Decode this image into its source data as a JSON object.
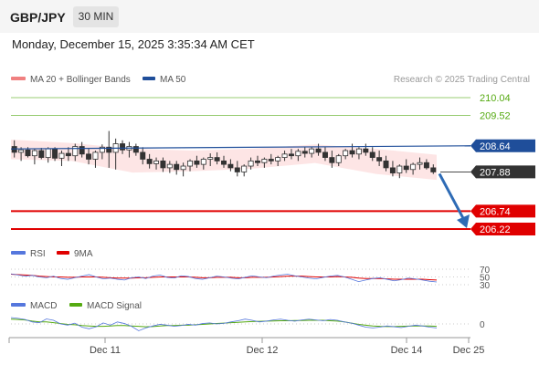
{
  "header": {
    "symbol": "GBP/JPY",
    "timeframe": "30 MIN"
  },
  "datetime": "Monday, December 15, 2025 3:35:34 AM CET",
  "colors": {
    "ma20": "#f08080",
    "ma50": "#1f4e9a",
    "support": "#e00000",
    "resistance": "#77bb44",
    "rsi": "#5577dd",
    "rsi9": "#e00000",
    "macd": "#5577dd",
    "macd_signal": "#55aa11",
    "arrow": "#2e6bb5",
    "bull": "#ffffff",
    "bear": "#333333"
  },
  "chart_data": {
    "type": "candlestick",
    "source_label": "Research © 2025 Trading Central",
    "legend": [
      {
        "label": "MA 20 + Bollinger Bands",
        "color": "#f08080"
      },
      {
        "label": "MA 50",
        "color": "#1f4e9a"
      }
    ],
    "x_ticks": [
      "Dec 11",
      "Dec 12",
      "Dec 14",
      "Dec 25"
    ],
    "levels": [
      {
        "value": "210.04",
        "kind": "resistance"
      },
      {
        "value": "209.52",
        "kind": "resistance"
      },
      {
        "value": "208.64",
        "kind": "ma50"
      },
      {
        "value": "207.88",
        "kind": "current"
      },
      {
        "value": "206.74",
        "kind": "support"
      },
      {
        "value": "206.22",
        "kind": "support"
      }
    ],
    "forecast": {
      "from": 207.88,
      "to": 206.22
    },
    "ma50_values": [
      208.55,
      208.64
    ],
    "bollinger": {
      "upper": [
        208.82,
        208.72,
        208.55,
        208.5,
        208.56,
        208.68,
        208.55,
        208.38
      ],
      "lower": [
        208.25,
        208.2,
        207.86,
        207.9,
        207.98,
        208.14,
        207.82,
        207.65
      ]
    },
    "candles": [
      [
        208.62,
        208.8,
        208.3,
        208.45
      ],
      [
        208.45,
        208.6,
        208.2,
        208.52
      ],
      [
        208.52,
        208.6,
        208.3,
        208.35
      ],
      [
        208.35,
        208.55,
        208.1,
        208.5
      ],
      [
        208.5,
        208.58,
        208.25,
        208.3
      ],
      [
        208.3,
        208.6,
        208.15,
        208.55
      ],
      [
        208.55,
        208.6,
        208.2,
        208.28
      ],
      [
        208.28,
        208.5,
        208.05,
        208.42
      ],
      [
        208.42,
        208.6,
        208.2,
        208.35
      ],
      [
        208.35,
        208.7,
        208.2,
        208.62
      ],
      [
        208.62,
        208.75,
        208.3,
        208.4
      ],
      [
        208.4,
        208.55,
        208.1,
        208.25
      ],
      [
        208.25,
        208.5,
        208.0,
        208.45
      ],
      [
        208.45,
        208.68,
        208.25,
        208.6
      ],
      [
        208.6,
        209.07,
        208.0,
        208.45
      ],
      [
        208.45,
        208.85,
        207.95,
        208.7
      ],
      [
        208.7,
        208.8,
        208.4,
        208.52
      ],
      [
        208.52,
        208.75,
        208.3,
        208.62
      ],
      [
        208.62,
        208.7,
        208.35,
        208.45
      ],
      [
        208.45,
        208.6,
        208.1,
        208.25
      ],
      [
        208.25,
        208.4,
        207.98,
        208.12
      ],
      [
        208.12,
        208.3,
        207.95,
        208.2
      ],
      [
        208.2,
        208.3,
        207.88,
        208.0
      ],
      [
        208.0,
        208.2,
        207.85,
        208.1
      ],
      [
        208.1,
        208.2,
        207.8,
        207.95
      ],
      [
        207.95,
        208.15,
        207.75,
        208.05
      ],
      [
        208.05,
        208.25,
        207.9,
        208.2
      ],
      [
        208.2,
        208.35,
        208.0,
        208.1
      ],
      [
        208.1,
        208.3,
        207.95,
        208.25
      ],
      [
        208.25,
        208.42,
        208.05,
        208.3
      ],
      [
        208.3,
        208.45,
        208.1,
        208.2
      ],
      [
        208.2,
        208.35,
        208.0,
        208.1
      ],
      [
        208.1,
        208.25,
        207.9,
        208.0
      ],
      [
        208.0,
        208.2,
        207.75,
        207.88
      ],
      [
        207.88,
        208.1,
        207.75,
        208.05
      ],
      [
        208.05,
        208.3,
        207.95,
        208.2
      ],
      [
        208.2,
        208.35,
        208.05,
        208.15
      ],
      [
        208.15,
        208.3,
        208.0,
        208.25
      ],
      [
        208.25,
        208.4,
        208.1,
        208.2
      ],
      [
        208.2,
        208.35,
        208.05,
        208.3
      ],
      [
        208.3,
        208.5,
        208.2,
        208.4
      ],
      [
        208.4,
        208.55,
        208.25,
        208.35
      ],
      [
        208.35,
        208.55,
        208.2,
        208.48
      ],
      [
        208.48,
        208.6,
        208.3,
        208.42
      ],
      [
        208.42,
        208.62,
        208.3,
        208.55
      ],
      [
        208.55,
        208.7,
        208.35,
        208.45
      ],
      [
        208.45,
        208.6,
        208.2,
        208.3
      ],
      [
        208.3,
        208.5,
        208.0,
        208.15
      ],
      [
        208.15,
        208.4,
        208.05,
        208.35
      ],
      [
        208.35,
        208.55,
        208.25,
        208.5
      ],
      [
        208.5,
        208.7,
        208.3,
        208.4
      ],
      [
        208.4,
        208.6,
        208.25,
        208.55
      ],
      [
        208.55,
        208.7,
        208.35,
        208.45
      ],
      [
        208.45,
        208.6,
        208.2,
        208.3
      ],
      [
        208.3,
        208.5,
        208.05,
        208.2
      ],
      [
        208.2,
        208.35,
        207.9,
        208.0
      ],
      [
        208.0,
        208.2,
        207.75,
        207.85
      ],
      [
        207.85,
        208.1,
        207.7,
        208.05
      ],
      [
        208.05,
        208.25,
        207.85,
        207.95
      ],
      [
        207.95,
        208.15,
        207.8,
        208.1
      ],
      [
        208.1,
        208.3,
        207.95,
        208.15
      ],
      [
        208.15,
        208.25,
        207.95,
        208.0
      ],
      [
        208.0,
        208.1,
        207.82,
        207.88
      ]
    ],
    "rsi": {
      "legend": [
        {
          "label": "RSI",
          "color": "#5577dd"
        },
        {
          "label": "9MA",
          "color": "#e00000"
        }
      ],
      "ticks": [
        "70",
        "50",
        "30"
      ],
      "values": [
        58,
        55,
        52,
        54,
        50,
        48,
        52,
        46,
        44,
        48,
        52,
        56,
        50,
        45,
        47,
        44,
        42,
        48,
        50,
        46,
        52,
        55,
        49,
        47,
        53,
        51,
        46,
        44,
        48,
        52,
        50,
        47,
        45,
        49,
        53,
        50,
        48,
        52,
        55,
        57,
        53,
        50,
        47,
        45,
        49,
        52,
        54,
        50,
        44,
        38,
        42,
        46,
        48,
        44,
        40,
        43,
        47,
        45,
        42,
        39,
        37
      ],
      "ma9": [
        57,
        56,
        55,
        54,
        52,
        51,
        50,
        50,
        49,
        49,
        50,
        50,
        50,
        49,
        48,
        47,
        47,
        47,
        48,
        48,
        49,
        50,
        50,
        50,
        50,
        50,
        49,
        48,
        48,
        49,
        49,
        49,
        48,
        48,
        49,
        49,
        49,
        50,
        51,
        52,
        52,
        52,
        51,
        50,
        50,
        50,
        51,
        50,
        49,
        47,
        46,
        46,
        46,
        45,
        44,
        44,
        44,
        44,
        44,
        43,
        42
      ]
    },
    "macd": {
      "legend": [
        {
          "label": "MACD",
          "color": "#5577dd"
        },
        {
          "label": "MACD Signal",
          "color": "#55aa11"
        }
      ],
      "ticks": [
        "0"
      ],
      "values": [
        0.32,
        0.28,
        0.22,
        0.1,
        0.06,
        0.25,
        0.18,
        0.0,
        -0.06,
        0.04,
        -0.16,
        -0.24,
        -0.14,
        0.05,
        -0.06,
        0.1,
        0.02,
        -0.12,
        -0.34,
        -0.2,
        -0.1,
        -0.02,
        -0.06,
        -0.12,
        -0.08,
        -0.02,
        -0.06,
        0.02,
        0.05,
        0.0,
        0.03,
        0.1,
        0.16,
        0.24,
        0.18,
        0.1,
        0.14,
        0.2,
        0.24,
        0.18,
        0.14,
        0.2,
        0.24,
        0.2,
        0.16,
        0.22,
        0.18,
        0.1,
        0.04,
        -0.06,
        -0.16,
        -0.2,
        -0.16,
        -0.1,
        -0.14,
        -0.18,
        -0.12,
        -0.06,
        -0.1,
        -0.16,
        -0.2
      ],
      "signal": [
        0.24,
        0.22,
        0.2,
        0.14,
        0.1,
        0.1,
        0.06,
        0.02,
        -0.02,
        -0.04,
        -0.08,
        -0.1,
        -0.12,
        -0.12,
        -0.1,
        -0.08,
        -0.08,
        -0.1,
        -0.12,
        -0.14,
        -0.13,
        -0.1,
        -0.08,
        -0.08,
        -0.06,
        -0.06,
        -0.04,
        -0.02,
        0.0,
        0.02,
        0.04,
        0.06,
        0.08,
        0.1,
        0.12,
        0.13,
        0.14,
        0.15,
        0.16,
        0.16,
        0.17,
        0.17,
        0.18,
        0.18,
        0.18,
        0.16,
        0.14,
        0.1,
        0.04,
        -0.02,
        -0.06,
        -0.1,
        -0.12,
        -0.13,
        -0.13,
        -0.12,
        -0.11,
        -0.1,
        -0.1,
        -0.1,
        -0.12
      ]
    }
  }
}
